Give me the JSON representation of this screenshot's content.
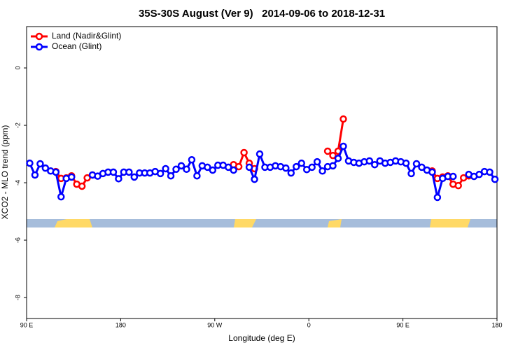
{
  "chart_data": {
    "type": "line",
    "title": "35S-30S August (Ver 9)   2014-09-06 to 2018-12-31",
    "x_label": "Longitude (deg E)",
    "y_label": "XCO2 - MLO trend (ppm)",
    "x": [
      93,
      98,
      103,
      108,
      113,
      118,
      123,
      128,
      133,
      138,
      143,
      148,
      153,
      158,
      163,
      168,
      173,
      178,
      183,
      188,
      193,
      198,
      203,
      208,
      213,
      218,
      223,
      228,
      233,
      238,
      243,
      248,
      253,
      258,
      263,
      268,
      273,
      278,
      283,
      288,
      293,
      298,
      303,
      308,
      313,
      318,
      323,
      328,
      333,
      338,
      343,
      348,
      353,
      358,
      363,
      368,
      373,
      378,
      383,
      388,
      393,
      398,
      403,
      408,
      413,
      418,
      423,
      428,
      433,
      438,
      443,
      448,
      453,
      458,
      463,
      468,
      473,
      478,
      483,
      488,
      493,
      498,
      503,
      508,
      513,
      518,
      523,
      528,
      533,
      538
    ],
    "series": [
      {
        "name": "Land (Nadir&Glint)",
        "color": "#ff0000",
        "values": [
          null,
          null,
          null,
          null,
          null,
          -3.61,
          -3.85,
          -3.83,
          -3.76,
          -4.05,
          -4.12,
          -3.83,
          -3.73,
          null,
          null,
          null,
          null,
          null,
          null,
          null,
          null,
          null,
          null,
          null,
          null,
          null,
          null,
          null,
          null,
          null,
          null,
          null,
          null,
          null,
          null,
          null,
          null,
          null,
          null,
          -3.37,
          -3.44,
          -2.95,
          -3.32,
          -3.51,
          null,
          null,
          null,
          null,
          null,
          null,
          null,
          null,
          null,
          null,
          null,
          null,
          null,
          -2.9,
          -3.05,
          -2.9,
          -1.78,
          null,
          null,
          null,
          null,
          null,
          null,
          null,
          null,
          null,
          null,
          null,
          null,
          null,
          null,
          null,
          null,
          -3.59,
          -3.85,
          -3.8,
          -3.76,
          -4.05,
          -4.1,
          -3.83,
          -3.76,
          null,
          null,
          null,
          null,
          null
        ]
      },
      {
        "name": "Ocean (Glint)",
        "color": "#0000ff",
        "values": [
          -3.32,
          -3.73,
          -3.34,
          -3.49,
          -3.59,
          -3.63,
          -4.49,
          -3.85,
          -3.8,
          null,
          null,
          null,
          -3.73,
          -3.77,
          -3.68,
          -3.63,
          -3.63,
          -3.86,
          -3.63,
          -3.63,
          -3.8,
          -3.66,
          -3.66,
          -3.66,
          -3.61,
          -3.68,
          -3.51,
          -3.76,
          -3.53,
          -3.41,
          -3.53,
          -3.2,
          -3.76,
          -3.41,
          -3.46,
          -3.56,
          -3.39,
          -3.39,
          -3.46,
          -3.56,
          null,
          null,
          -3.46,
          -3.88,
          -3.0,
          -3.46,
          -3.46,
          -3.41,
          -3.44,
          -3.49,
          -3.66,
          -3.44,
          -3.32,
          -3.54,
          -3.46,
          -3.27,
          -3.59,
          -3.44,
          -3.41,
          -3.15,
          -2.73,
          -3.24,
          -3.29,
          -3.32,
          -3.27,
          -3.24,
          -3.37,
          -3.24,
          -3.32,
          -3.29,
          -3.24,
          -3.27,
          -3.32,
          -3.68,
          -3.34,
          -3.46,
          -3.56,
          -3.63,
          -4.51,
          -3.85,
          -3.78,
          -3.78,
          null,
          null,
          -3.71,
          -3.78,
          -3.71,
          -3.61,
          -3.63,
          -3.88
        ]
      }
    ],
    "xlim": [
      90,
      540
    ],
    "xticks": [
      {
        "value": 90,
        "label": "90 E"
      },
      180,
      {
        "value": 270,
        "label": "90 W"
      },
      {
        "value": 360,
        "label": "0"
      },
      {
        "value": 450,
        "label": "90 E"
      },
      {
        "value": 540,
        "label": "180"
      }
    ],
    "ylim": [
      -8.73,
      1.44
    ],
    "yticks": [
      0,
      -2,
      -4,
      -6,
      -8
    ],
    "legend": "top-left"
  }
}
